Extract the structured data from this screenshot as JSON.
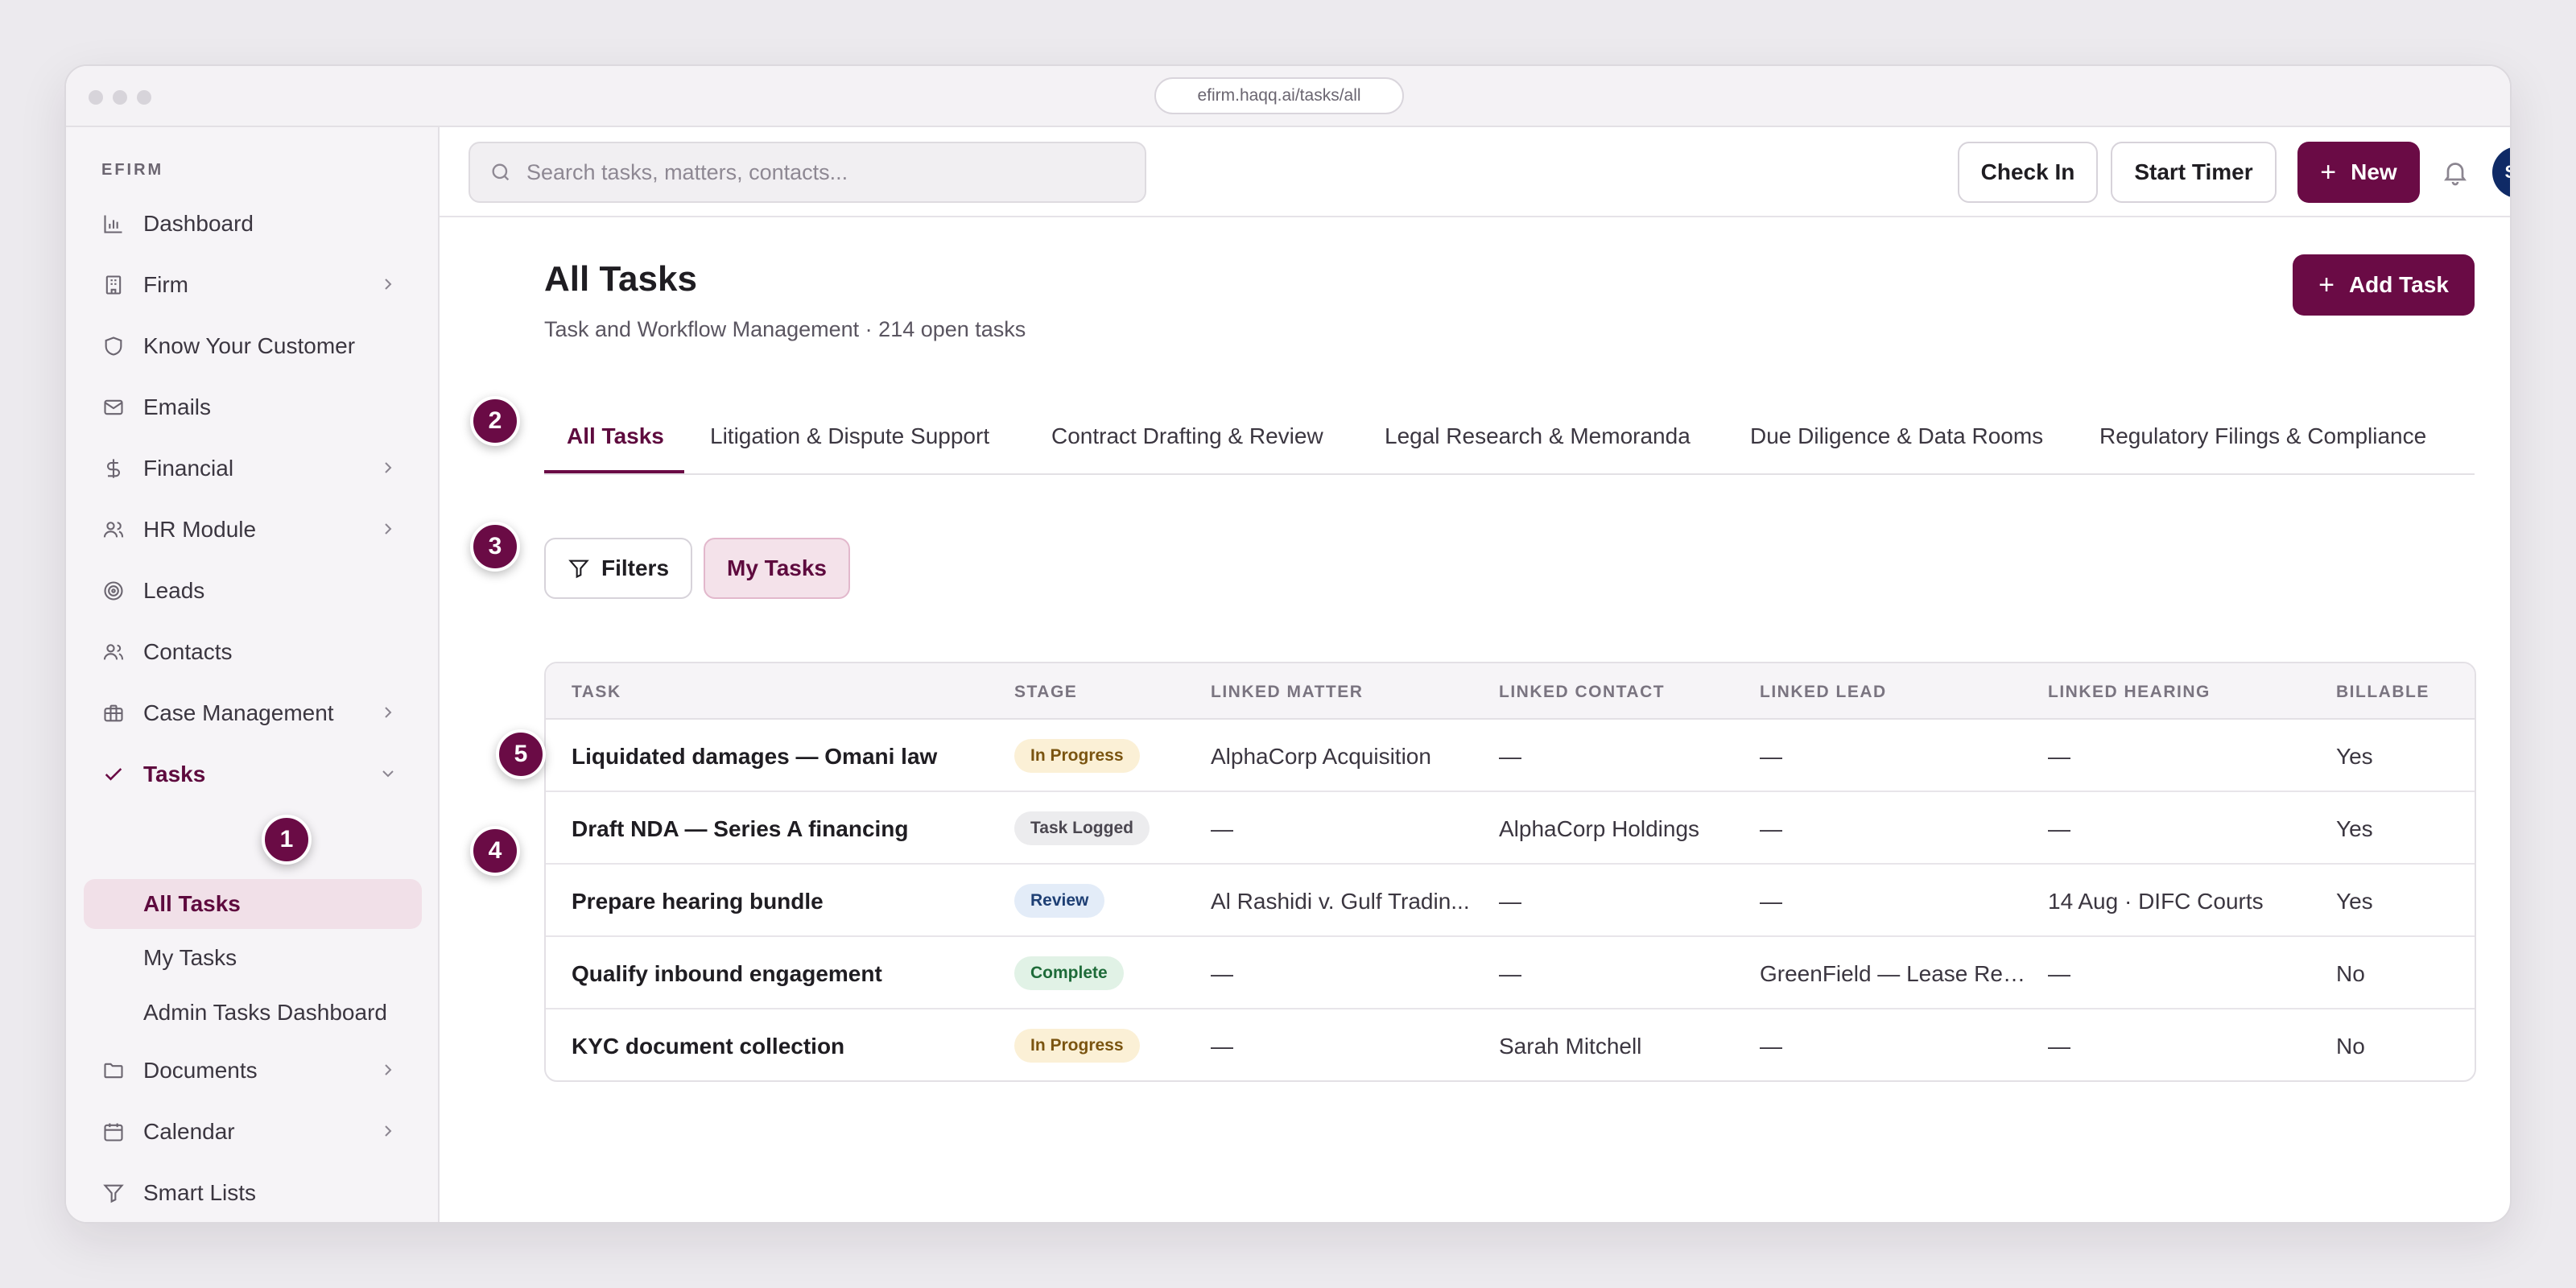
{
  "browser": {
    "url": "efirm.haqq.ai/tasks/all"
  },
  "sidebar": {
    "brand": "EFIRM",
    "items": [
      {
        "label": "Dashboard",
        "icon": "bar-chart-icon"
      },
      {
        "label": "Firm",
        "icon": "building-icon"
      },
      {
        "label": "Know Your Customer",
        "icon": "shield-icon"
      },
      {
        "label": "Emails",
        "icon": "mail-icon"
      },
      {
        "label": "Financial",
        "icon": "dollar-icon"
      },
      {
        "label": "HR Module",
        "icon": "users-icon"
      },
      {
        "label": "Leads",
        "icon": "target-icon"
      },
      {
        "label": "Contacts",
        "icon": "contacts-icon"
      },
      {
        "label": "Case Management",
        "icon": "briefcase-icon"
      },
      {
        "label": "Tasks",
        "icon": "check-icon"
      },
      {
        "label": "Documents",
        "icon": "folder-icon"
      },
      {
        "label": "Calendar",
        "icon": "calendar-icon"
      },
      {
        "label": "Smart Lists",
        "icon": "filter-icon"
      }
    ],
    "task_subitems": [
      "All Tasks",
      "My Tasks",
      "Admin Tasks Dashboard"
    ]
  },
  "topbar": {
    "search_placeholder": "Search tasks, matters, contacts...",
    "check_in": "Check In",
    "start_timer": "Start Timer",
    "new": "New",
    "avatar_initials": "SM"
  },
  "page": {
    "title": "All Tasks",
    "subtitle": "Task and Workflow Management · 214 open tasks",
    "add_task": "Add Task"
  },
  "tabs": [
    "All Tasks",
    "Litigation & Dispute Support",
    "Contract Drafting & Review",
    "Legal Research & Memoranda",
    "Due Diligence & Data Rooms",
    "Regulatory Filings & Compliance"
  ],
  "filters": {
    "filters_label": "Filters",
    "my_tasks_label": "My Tasks"
  },
  "table": {
    "headers": [
      "TASK",
      "STAGE",
      "LINKED MATTER",
      "LINKED CONTACT",
      "LINKED LEAD",
      "LINKED HEARING",
      "BILLABLE"
    ],
    "rows": [
      {
        "task": "Liquidated damages — Omani law",
        "stage": "In Progress",
        "matter": "AlphaCorp Acquisition",
        "contact": "—",
        "lead": "—",
        "hearing": "—",
        "billable": "Yes"
      },
      {
        "task": "Draft NDA — Series A financing",
        "stage": "Task Logged",
        "matter": "—",
        "contact": "AlphaCorp Holdings",
        "lead": "—",
        "hearing": "—",
        "billable": "Yes"
      },
      {
        "task": "Prepare hearing bundle",
        "stage": "Review",
        "matter": "Al Rashidi v. Gulf Tradin...",
        "contact": "—",
        "lead": "—",
        "hearing": "14 Aug · DIFC Courts",
        "billable": "Yes"
      },
      {
        "task": "Qualify inbound engagement",
        "stage": "Complete",
        "matter": "—",
        "contact": "—",
        "lead": "GreenField — Lease Ren...",
        "hearing": "—",
        "billable": "No"
      },
      {
        "task": "KYC document collection",
        "stage": "In Progress",
        "matter": "—",
        "contact": "Sarah Mitchell",
        "lead": "—",
        "hearing": "—",
        "billable": "No"
      }
    ]
  },
  "markers": [
    "1",
    "2",
    "3",
    "4",
    "5"
  ],
  "colors": {
    "accent": "#6a0b45",
    "avatar": "#0f2a66"
  }
}
